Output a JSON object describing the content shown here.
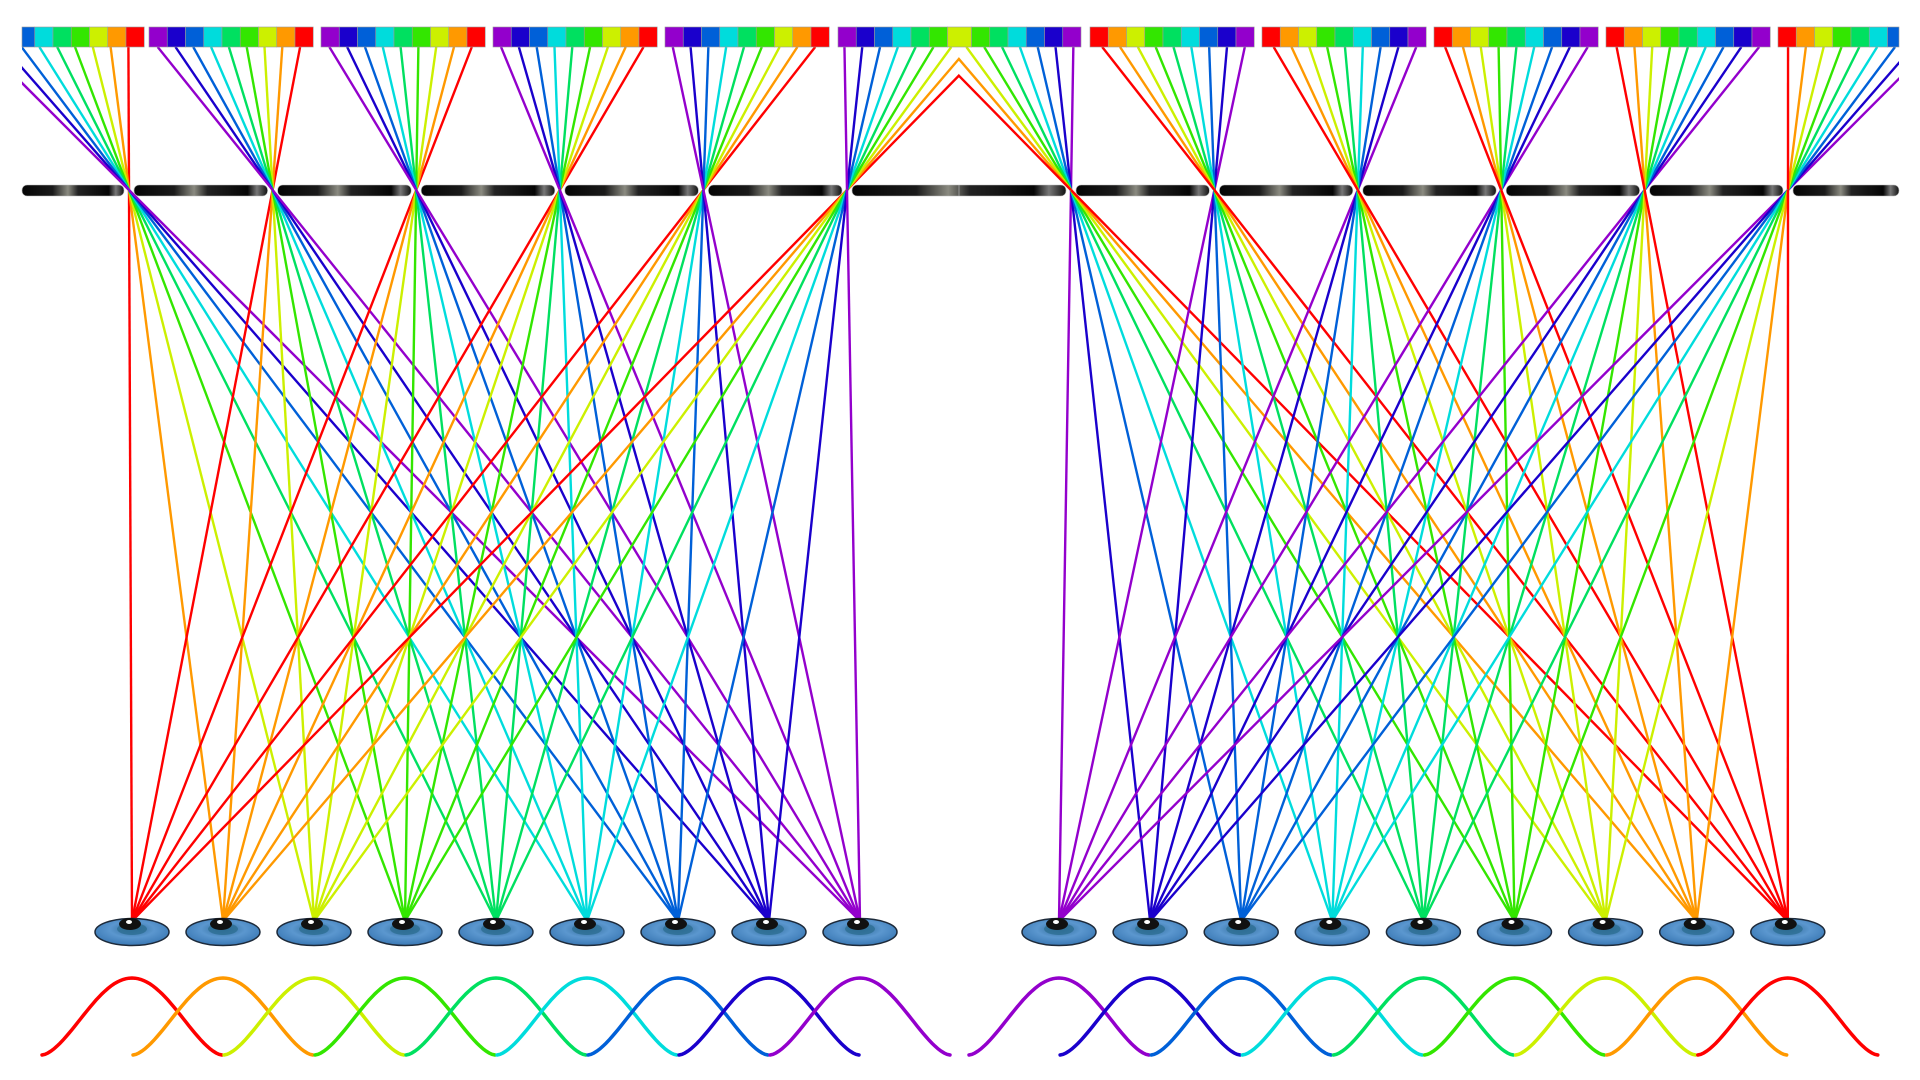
{
  "palette": {
    "red": "#ff0000",
    "orange": "#ff9900",
    "yellow": "#ccf000",
    "green": "#33e600",
    "springgreen": "#00e060",
    "cyan": "#00dcdc",
    "blue": "#0060d8",
    "darkblue": "#1a00cc",
    "violet": "#9300cc"
  },
  "background": "#ffffff",
  "grating_color": "#111111",
  "eye_color": "#4a86c0",
  "color_bars": [
    [
      "blue",
      "cyan",
      "springgreen",
      "green",
      "yellow",
      "orange",
      "red"
    ],
    [
      "violet",
      "darkblue",
      "blue",
      "cyan",
      "springgreen",
      "green",
      "yellow",
      "orange",
      "red"
    ],
    [
      "violet",
      "darkblue",
      "blue",
      "cyan",
      "springgreen",
      "green",
      "yellow",
      "orange",
      "red"
    ],
    [
      "violet",
      "darkblue",
      "blue",
      "cyan",
      "springgreen",
      "green",
      "yellow",
      "orange",
      "red"
    ],
    [
      "violet",
      "darkblue",
      "blue",
      "cyan",
      "springgreen",
      "green",
      "yellow",
      "orange",
      "red"
    ],
    [
      "violet",
      "darkblue",
      "blue",
      "cyan",
      "springgreen",
      "green",
      "yellow",
      "green",
      "springgreen",
      "cyan",
      "blue",
      "darkblue",
      "violet"
    ],
    [
      "red",
      "orange",
      "yellow",
      "green",
      "springgreen",
      "cyan",
      "blue",
      "darkblue",
      "violet"
    ],
    [
      "red",
      "orange",
      "yellow",
      "green",
      "springgreen",
      "cyan",
      "blue",
      "darkblue",
      "violet"
    ],
    [
      "red",
      "orange",
      "yellow",
      "green",
      "springgreen",
      "cyan",
      "blue",
      "darkblue",
      "violet"
    ],
    [
      "red",
      "orange",
      "yellow",
      "green",
      "springgreen",
      "cyan",
      "blue",
      "darkblue",
      "violet"
    ],
    [
      "red",
      "orange",
      "yellow",
      "green",
      "springgreen",
      "cyan",
      "blue"
    ]
  ],
  "left_group": {
    "slit_count": 6,
    "eye_colors": [
      "red",
      "orange",
      "yellow",
      "green",
      "springgreen",
      "cyan",
      "blue",
      "darkblue",
      "violet"
    ]
  },
  "right_group": {
    "slit_count": 6,
    "eye_colors": [
      "violet",
      "darkblue",
      "blue",
      "cyan",
      "springgreen",
      "green",
      "yellow",
      "orange",
      "red"
    ]
  }
}
